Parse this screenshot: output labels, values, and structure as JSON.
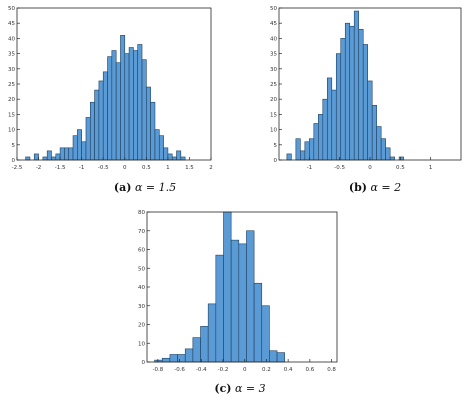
{
  "captions": [
    {
      "label": "(a)",
      "eq": "α = 1.5"
    },
    {
      "label": "(b)",
      "eq": "α = 2"
    },
    {
      "label": "(c)",
      "eq": "α = 3"
    }
  ],
  "colors": {
    "bar_fill": "#5b9bd5",
    "bar_stroke": "#1f3f5f",
    "axis": "#262626"
  },
  "chart_data": [
    {
      "type": "bar",
      "xlim": [
        -2.5,
        2
      ],
      "ylim": [
        0,
        50
      ],
      "xticks": [
        "-2.5",
        "-2",
        "-1.5",
        "-1",
        "-0.5",
        "0",
        "0.5",
        "1",
        "1.5",
        "2"
      ],
      "yticks": [
        "0",
        "5",
        "10",
        "15",
        "20",
        "25",
        "30",
        "35",
        "40",
        "45",
        "50"
      ],
      "bin_start": -2.3,
      "bin_width": 0.1,
      "values": [
        1,
        0,
        2,
        0,
        1,
        3,
        1,
        2,
        4,
        4,
        4,
        8,
        10,
        6,
        14,
        19,
        23,
        26,
        29,
        34,
        36,
        32,
        41,
        35,
        37,
        36,
        38,
        33,
        24,
        19,
        10,
        8,
        4,
        2,
        1,
        3,
        1
      ]
    },
    {
      "type": "bar",
      "xlim": [
        -1.5,
        1.5
      ],
      "ylim": [
        0,
        50
      ],
      "xticks": [
        "-1",
        "-0.5",
        "0",
        "0.5",
        "1"
      ],
      "yticks": [
        "0",
        "5",
        "10",
        "15",
        "20",
        "25",
        "30",
        "35",
        "40",
        "45",
        "50"
      ],
      "bin_start": -1.37,
      "bin_width": 0.074,
      "values": [
        2,
        0,
        7,
        3,
        6,
        7,
        12,
        15,
        20,
        27,
        23,
        35,
        40,
        45,
        44,
        49,
        43,
        38,
        26,
        18,
        11,
        7,
        4,
        1,
        0,
        1
      ]
    },
    {
      "type": "bar",
      "xlim": [
        -0.9,
        0.85
      ],
      "ylim": [
        0,
        80
      ],
      "xticks": [
        "-0.8",
        "-0.6",
        "-0.4",
        "-0.2",
        "0",
        "0.2",
        "0.4",
        "0.6",
        "0.8"
      ],
      "yticks": [
        "0",
        "10",
        "20",
        "30",
        "40",
        "50",
        "60",
        "70",
        "80"
      ],
      "bin_start": -0.83,
      "bin_width": 0.0705,
      "values": [
        1,
        2,
        4,
        4,
        7,
        13,
        19,
        31,
        57,
        80,
        65,
        63,
        70,
        42,
        30,
        6,
        5
      ]
    }
  ]
}
